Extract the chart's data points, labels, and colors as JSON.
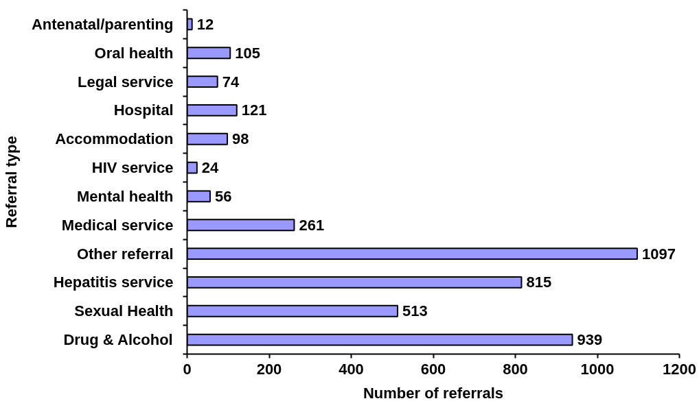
{
  "chart_data": {
    "type": "bar",
    "orientation": "horizontal",
    "categories": [
      "Antenatal/parenting",
      "Oral health",
      "Legal service",
      "Hospital",
      "Accommodation",
      "HIV service",
      "Mental health",
      "Medical service",
      "Other referral",
      "Hepatitis service",
      "Sexual Health",
      "Drug & Alcohol"
    ],
    "values": [
      12,
      105,
      74,
      121,
      98,
      24,
      56,
      261,
      1097,
      815,
      513,
      939
    ],
    "color": "#9999ff",
    "xlim": [
      0,
      1200
    ],
    "xticks": [
      0,
      200,
      400,
      600,
      800,
      1000,
      1200
    ],
    "xlabel": "Number of referrals",
    "ylabel": "Referral type",
    "data_labels": true
  }
}
